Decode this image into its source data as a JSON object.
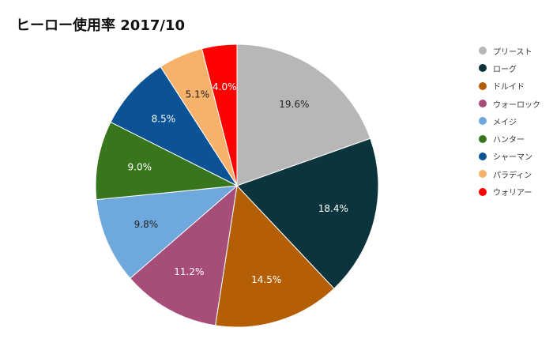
{
  "chart_data": {
    "type": "pie",
    "title": "ヒーロー使用率 2017/10",
    "legend_position": "right",
    "slices": [
      {
        "label": "プリースト",
        "value": 19.6,
        "display": "19.6%",
        "color": "#b7b7b7",
        "text_color": "#222222"
      },
      {
        "label": "ローグ",
        "value": 18.4,
        "display": "18.4%",
        "color": "#0c343d",
        "text_color": "#ffffff"
      },
      {
        "label": "ドルイド",
        "value": 14.5,
        "display": "14.5%",
        "color": "#b45f06",
        "text_color": "#ffffff"
      },
      {
        "label": "ウォーロック",
        "value": 11.2,
        "display": "11.2%",
        "color": "#a64d79",
        "text_color": "#ffffff"
      },
      {
        "label": "メイジ",
        "value": 9.8,
        "display": "9.8%",
        "color": "#6fa8dc",
        "text_color": "#222222"
      },
      {
        "label": "ハンター",
        "value": 9.0,
        "display": "9.0%",
        "color": "#38761d",
        "text_color": "#ffffff"
      },
      {
        "label": "シャーマン",
        "value": 8.5,
        "display": "8.5%",
        "color": "#0b5394",
        "text_color": "#ffffff"
      },
      {
        "label": "パラディン",
        "value": 5.1,
        "display": "5.1%",
        "color": "#f6b26b",
        "text_color": "#222222"
      },
      {
        "label": "ウォリアー",
        "value": 4.0,
        "display": "4.0%",
        "color": "#ff0000",
        "text_color": "#ffffff"
      }
    ]
  }
}
